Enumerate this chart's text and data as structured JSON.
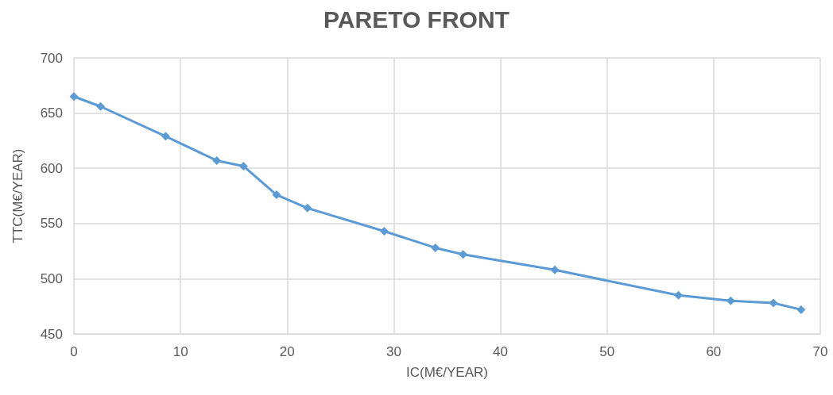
{
  "chart_data": {
    "type": "line",
    "title": "PARETO FRONT",
    "xlabel": "IC(M€/YEAR)",
    "ylabel": "TTC(M€/YEAR)",
    "x": [
      0,
      2.5,
      8.6,
      13.4,
      15.9,
      19.0,
      21.9,
      29.1,
      33.9,
      36.5,
      45.1,
      56.7,
      61.6,
      65.6,
      68.2
    ],
    "series": [
      {
        "color": "#5b9bd5",
        "values": [
          665,
          656,
          629,
          607,
          602,
          576,
          564,
          543,
          528,
          522,
          508,
          485,
          480,
          478,
          472
        ]
      }
    ],
    "xlim": [
      0,
      70
    ],
    "xticks": [
      0,
      10,
      20,
      30,
      40,
      50,
      60,
      70
    ],
    "ylim": [
      450,
      700
    ],
    "yticks": [
      450,
      500,
      550,
      600,
      650,
      700
    ],
    "grid": true,
    "marker": "diamond",
    "line_style": "solid"
  }
}
